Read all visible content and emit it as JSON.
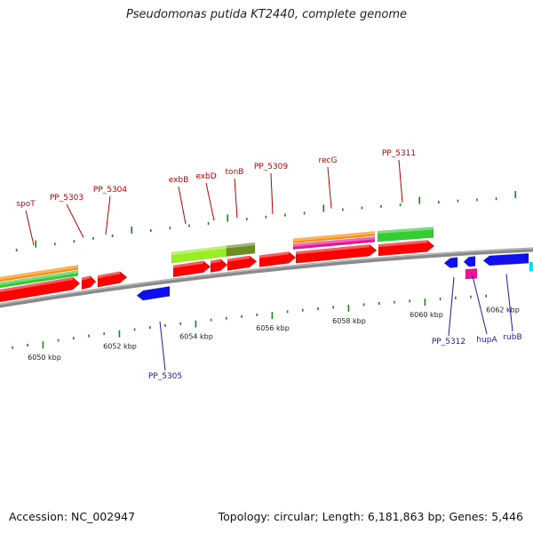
{
  "title": "Pseudomonas putida KT2440, complete genome",
  "accession": "Accession: NC_002947",
  "summary": "Topology: circular; Length: 6,181,863 bp; Genes: 5,446",
  "colors": {
    "backbone": "#8a8a8a",
    "forward_label": "#c00000",
    "reverse_label": "#1a1aa8",
    "tick": "#2a7a2a",
    "cds_forward": "#ff0000",
    "cds_reverse": "#1010ee",
    "orange": "#ff8c00",
    "green": "#33cc33",
    "magenta": "#ee1199",
    "lightgreen": "#99ee22",
    "olive": "#6b8e23",
    "cyan": "#00e5ee"
  },
  "kbp_labels": [
    "6050 kbp",
    "6052 kbp",
    "6054 kbp",
    "6056 kbp",
    "6058 kbp",
    "6060 kbp",
    "6062 kbp"
  ],
  "forward_genes": [
    "spoT",
    "PP_5303",
    "PP_5304",
    "exbB",
    "exbD",
    "tonB",
    "PP_5309",
    "recG",
    "PP_5311"
  ],
  "reverse_genes": [
    "PP_5305",
    "PP_5312",
    "hupA",
    "rubB"
  ]
}
